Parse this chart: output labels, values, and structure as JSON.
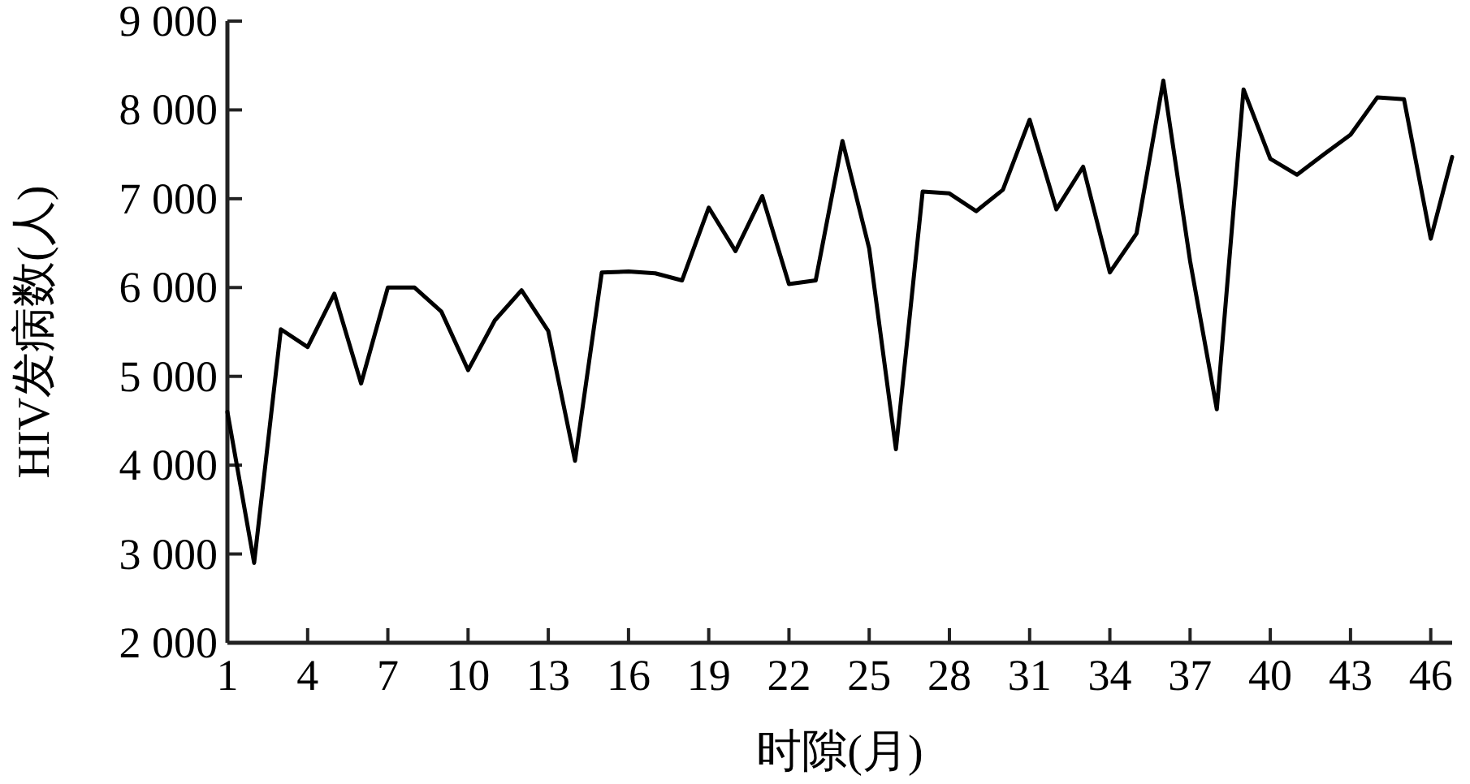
{
  "chart_data": {
    "type": "line",
    "xlabel": "时隙(月)",
    "ylabel": "HIV发病数(人)",
    "x": [
      1,
      2,
      3,
      4,
      5,
      6,
      7,
      8,
      9,
      10,
      11,
      12,
      13,
      14,
      15,
      16,
      17,
      18,
      19,
      20,
      21,
      22,
      23,
      24,
      25,
      26,
      27,
      28,
      29,
      30,
      31,
      32,
      33,
      34,
      35,
      36,
      37,
      38,
      39,
      40,
      41,
      42,
      43,
      44,
      45,
      46,
      46.8
    ],
    "series": [
      {
        "color": "#000000",
        "values": [
          4600,
          2900,
          5530,
          5330,
          5930,
          4920,
          6000,
          6000,
          5730,
          5070,
          5630,
          5970,
          5510,
          4050,
          6170,
          6180,
          6160,
          6080,
          6900,
          6410,
          7030,
          6040,
          6080,
          7650,
          6440,
          4180,
          7080,
          7060,
          6860,
          7100,
          7890,
          6880,
          7360,
          6170,
          6610,
          8330,
          6300,
          4630,
          8230,
          7450,
          7270,
          7500,
          7720,
          8140,
          8120,
          6550,
          7470
        ]
      }
    ],
    "xlim": [
      1,
      46.8
    ],
    "xticks": [
      1,
      4,
      7,
      10,
      13,
      16,
      19,
      22,
      25,
      28,
      31,
      34,
      37,
      40,
      43,
      46
    ],
    "ylim": [
      2000,
      9000
    ],
    "yticks": [
      {
        "value": 2000,
        "label": "2 000"
      },
      {
        "value": 3000,
        "label": "3 000"
      },
      {
        "value": 4000,
        "label": "4 000"
      },
      {
        "value": 5000,
        "label": "5 000"
      },
      {
        "value": 6000,
        "label": "6 000"
      },
      {
        "value": 7000,
        "label": "7 000"
      },
      {
        "value": 8000,
        "label": "8 000"
      },
      {
        "value": 9000,
        "label": "9 000"
      }
    ],
    "grid": false,
    "marker": "none",
    "line_style": "solid"
  }
}
